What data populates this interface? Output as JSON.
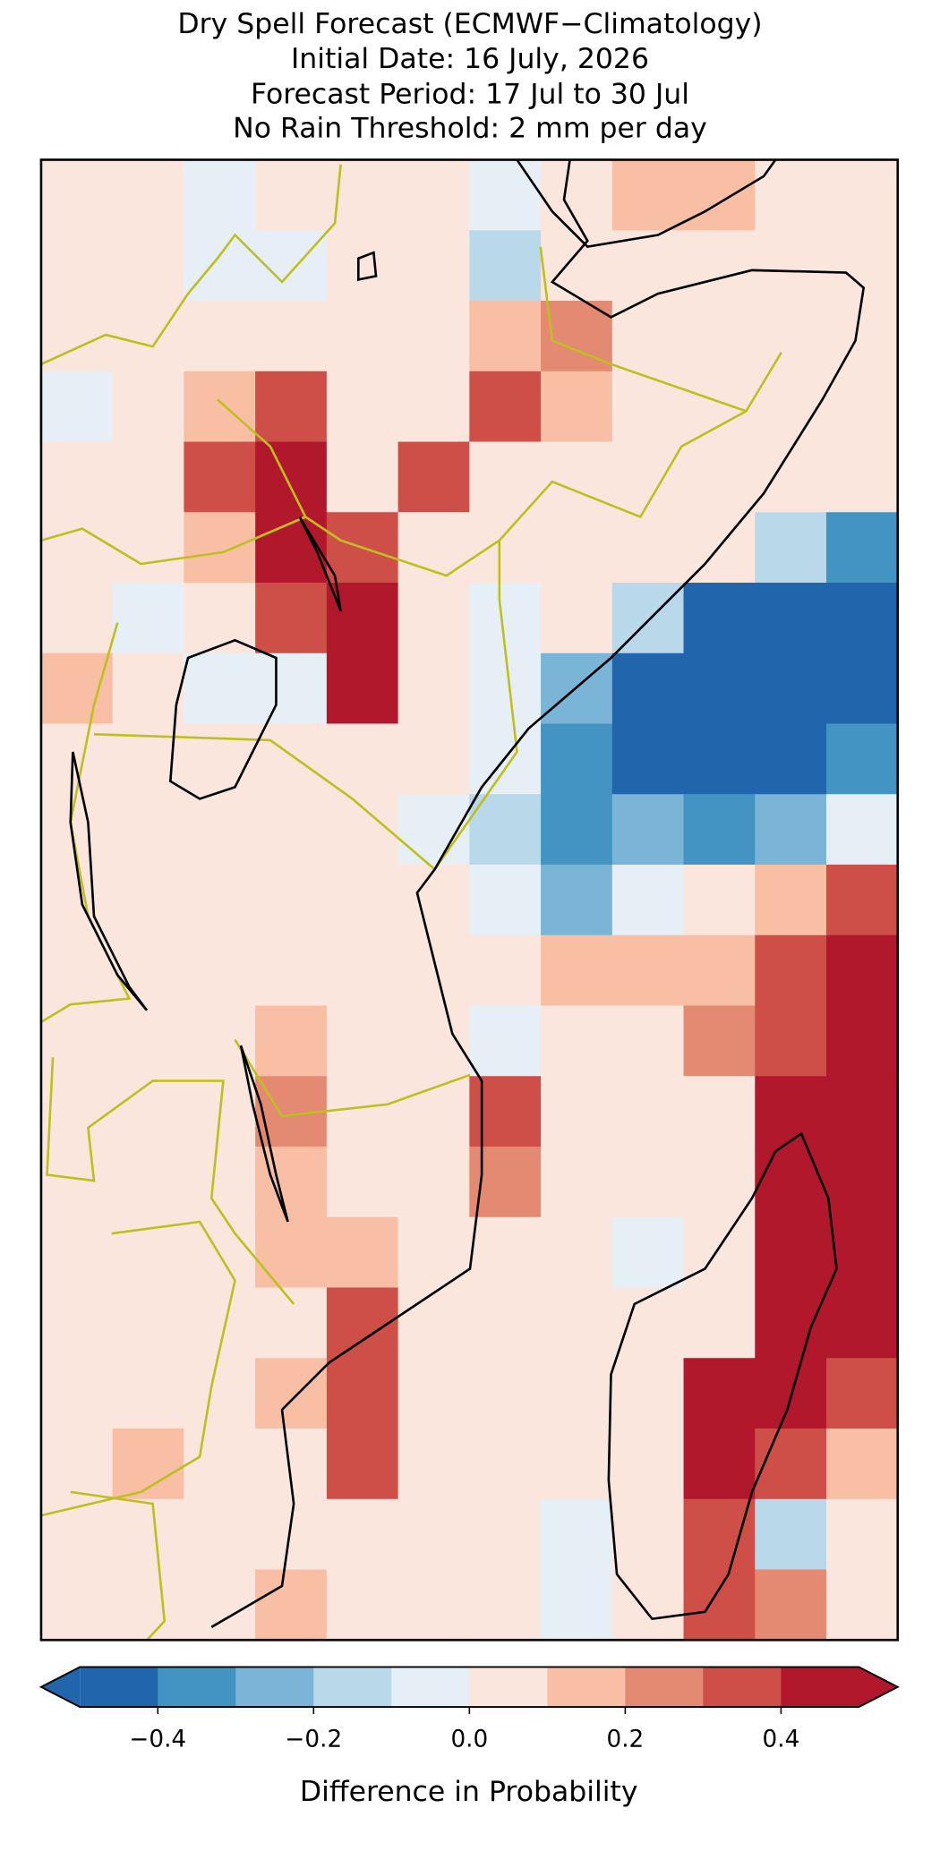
{
  "chart_data": {
    "type": "map",
    "title": [
      "Dry Spell Forecast (ECMWF−Climatology)",
      "Initial Date: 16 July, 2026",
      "Forecast Period: 17 Jul to 30 Jul",
      "No Rain Threshold: 2 mm per day"
    ],
    "colorbar": {
      "label": "Difference in Probability",
      "boundaries": [
        -0.5,
        -0.4,
        -0.3,
        -0.2,
        -0.1,
        0,
        0.1,
        0.2,
        0.3,
        0.4,
        0.5
      ],
      "colors": [
        "#2166ac",
        "#4393c3",
        "#7ab5d8",
        "#b9d8ea",
        "#e6eff5",
        "#fae6dd",
        "#f8bfa5",
        "#e48a72",
        "#cd4f48",
        "#b2182b"
      ],
      "extend": "both",
      "ticks": [
        {
          "value": -0.4,
          "label": "−0.4"
        },
        {
          "value": -0.2,
          "label": "−0.2"
        },
        {
          "value": 0,
          "label": "0.0"
        },
        0.2,
        0.4
      ]
    },
    "grid": [
      [
        0.05,
        0.05,
        -0.05,
        0.05,
        0.05,
        0.05,
        -0.05,
        0.05,
        0.15,
        0.15,
        0.05,
        0.05
      ],
      [
        0.05,
        0.05,
        -0.05,
        -0.05,
        0.05,
        0.05,
        -0.15,
        0.05,
        0.05,
        0.05,
        0.05,
        0.05
      ],
      [
        0.05,
        0.05,
        0.05,
        0.05,
        0.05,
        0.05,
        0.15,
        0.25,
        0.05,
        0.05,
        0.05,
        0.05
      ],
      [
        -0.05,
        0.05,
        0.15,
        0.35,
        0.05,
        0.05,
        0.35,
        0.15,
        0.05,
        0.05,
        0.05,
        0.05
      ],
      [
        0.05,
        0.05,
        0.35,
        0.45,
        0.05,
        0.35,
        0.05,
        0.05,
        0.05,
        0.05,
        0.05,
        0.05
      ],
      [
        0.05,
        0.05,
        0.15,
        0.45,
        0.35,
        0.05,
        0.05,
        0.05,
        0.05,
        0.05,
        -0.15,
        -0.35
      ],
      [
        0.05,
        -0.05,
        0.05,
        0.35,
        0.45,
        0.05,
        -0.05,
        0.05,
        -0.15,
        -0.45,
        -0.45,
        -0.45
      ],
      [
        0.15,
        0.05,
        -0.05,
        -0.05,
        0.45,
        0.05,
        -0.05,
        -0.25,
        -0.45,
        -0.45,
        -0.45,
        -0.45
      ],
      [
        0.05,
        0.05,
        0.05,
        0.05,
        0.05,
        0.05,
        -0.05,
        -0.35,
        -0.45,
        -0.45,
        -0.45,
        -0.35
      ],
      [
        0.05,
        0.05,
        0.05,
        0.05,
        0.05,
        -0.05,
        -0.15,
        -0.35,
        -0.25,
        -0.35,
        -0.25,
        -0.05
      ],
      [
        0.05,
        0.05,
        0.05,
        0.05,
        0.05,
        0.05,
        -0.05,
        -0.25,
        -0.05,
        0.05,
        0.15,
        0.35
      ],
      [
        0.05,
        0.05,
        0.05,
        0.05,
        0.05,
        0.05,
        0.05,
        0.15,
        0.15,
        0.15,
        0.35,
        0.45
      ],
      [
        0.05,
        0.05,
        0.05,
        0.15,
        0.05,
        0.05,
        -0.05,
        0.05,
        0.05,
        0.25,
        0.35,
        0.45
      ],
      [
        0.05,
        0.05,
        0.05,
        0.25,
        0.05,
        0.05,
        0.35,
        0.05,
        0.05,
        0.05,
        0.45,
        0.45
      ],
      [
        0.05,
        0.05,
        0.05,
        0.15,
        0.05,
        0.05,
        0.25,
        0.05,
        0.05,
        0.05,
        0.45,
        0.45
      ],
      [
        0.05,
        0.05,
        0.05,
        0.15,
        0.15,
        0.05,
        0.05,
        0.05,
        -0.05,
        0.05,
        0.45,
        0.45
      ],
      [
        0.05,
        0.05,
        0.05,
        0.05,
        0.35,
        0.05,
        0.05,
        0.05,
        0.05,
        0.05,
        0.45,
        0.45
      ],
      [
        0.05,
        0.05,
        0.05,
        0.15,
        0.35,
        0.05,
        0.05,
        0.05,
        0.05,
        0.45,
        0.45,
        0.35
      ],
      [
        0.05,
        0.15,
        0.05,
        0.05,
        0.35,
        0.05,
        0.05,
        0.05,
        0.05,
        0.45,
        0.35,
        0.15
      ],
      [
        0.05,
        0.05,
        0.05,
        0.05,
        0.05,
        0.05,
        0.05,
        -0.05,
        0.05,
        0.35,
        -0.15,
        0.05
      ],
      [
        0.05,
        0.05,
        0.05,
        0.15,
        0.05,
        0.05,
        0.05,
        -0.05,
        0.05,
        0.35,
        0.25,
        0.05
      ]
    ]
  }
}
